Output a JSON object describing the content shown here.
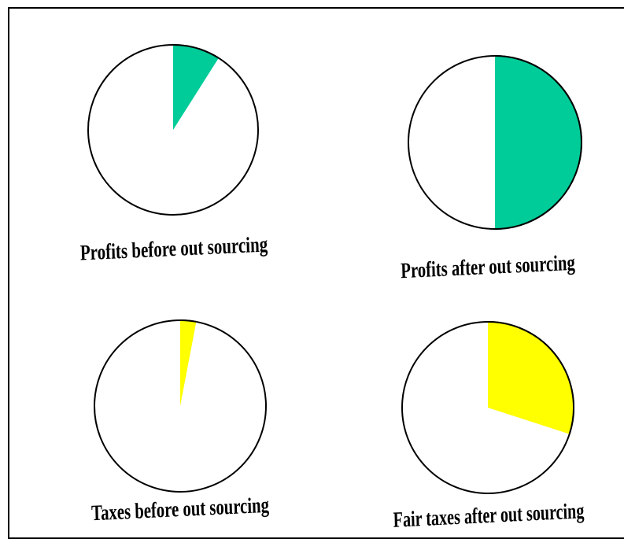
{
  "chart_data": [
    {
      "type": "pie",
      "label": "Profits before out sourcing",
      "slice_fraction": 0.09,
      "slice_color": "#00CC99",
      "rest_color": "#FFFFFF"
    },
    {
      "type": "pie",
      "label": "Profits after out sourcing",
      "slice_fraction": 0.5,
      "slice_color": "#00CC99",
      "rest_color": "#FFFFFF"
    },
    {
      "type": "pie",
      "label": "Taxes before out sourcing",
      "slice_fraction": 0.03,
      "slice_color": "#FFFF00",
      "rest_color": "#FFFFFF"
    },
    {
      "type": "pie",
      "label": "Fair taxes after out sourcing",
      "slice_fraction": 0.3,
      "slice_color": "#FFFF00",
      "rest_color": "#FFFFFF"
    }
  ]
}
